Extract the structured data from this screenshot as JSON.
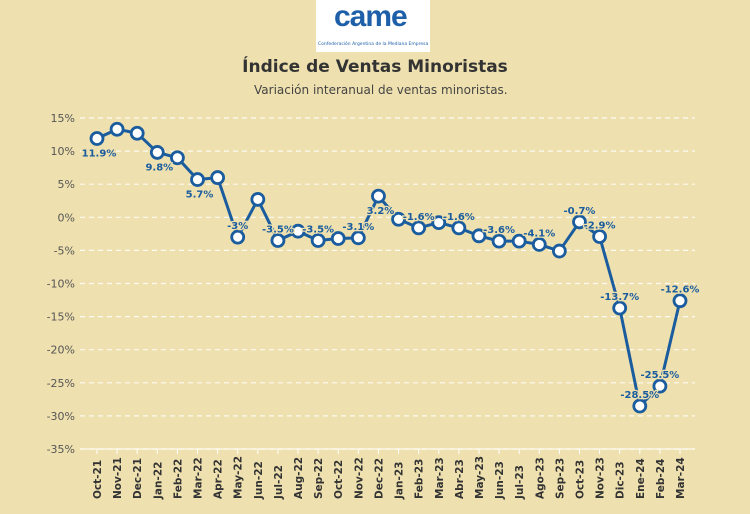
{
  "logo": {
    "mark": "came",
    "tagline": "Confederación Argentina de la Mediana Empresa"
  },
  "header": {
    "title": "Índice de Ventas Minoristas",
    "subtitle": "Variación interanual de ventas minoristas."
  },
  "chart_data": {
    "type": "line",
    "title": "Índice de Ventas Minoristas",
    "subtitle": "Variación interanual de ventas minoristas.",
    "xlabel": "",
    "ylabel": "",
    "ylim": [
      -35,
      15
    ],
    "yticks": [
      15,
      10,
      5,
      0,
      -5,
      -10,
      -15,
      -20,
      -25,
      -30,
      -35
    ],
    "ytick_labels": [
      "15%",
      "10%",
      "5%",
      "0%",
      "-5%",
      "-10%",
      "-15%",
      "-20%",
      "-25%",
      "-30%",
      "-35%"
    ],
    "grid": true,
    "color": "#1a5c9e",
    "categories": [
      "Oct-21",
      "Nov-21",
      "Dec-21",
      "Jan-22",
      "Feb-22",
      "Mar-22",
      "Apr-22",
      "May-22",
      "Jun-22",
      "Jul-22",
      "Aug-22",
      "Sep-22",
      "Oct-22",
      "Nov-22",
      "Dec-22",
      "Jan-23",
      "Feb-23",
      "Mar-23",
      "Abr-23",
      "May-23",
      "Jun-23",
      "Jul-23",
      "Ago-23",
      "Sep-23",
      "Oct-23",
      "Nov-23",
      "Dic-23",
      "Ene-24",
      "Feb-24",
      "Mar-24"
    ],
    "values": [
      11.9,
      13.3,
      12.7,
      9.8,
      9.0,
      5.7,
      6.0,
      -3.0,
      2.7,
      -3.5,
      -2.1,
      -3.5,
      -3.2,
      -3.1,
      3.2,
      -0.3,
      -1.6,
      -0.8,
      -1.6,
      -2.8,
      -3.6,
      -3.6,
      -4.1,
      -5.1,
      -0.7,
      -2.9,
      -13.7,
      -28.5,
      -25.5,
      -12.6
    ],
    "data_labels": [
      {
        "index": 0,
        "text": "11.9%",
        "side": "below"
      },
      {
        "index": 3,
        "text": "9.8%",
        "side": "below"
      },
      {
        "index": 5,
        "text": "5.7%",
        "side": "below"
      },
      {
        "index": 7,
        "text": "-3%",
        "side": "above"
      },
      {
        "index": 9,
        "text": "-3.5%",
        "side": "above"
      },
      {
        "index": 11,
        "text": "-3.5%",
        "side": "above"
      },
      {
        "index": 13,
        "text": "-3.1%",
        "side": "above"
      },
      {
        "index": 14,
        "text": "3.2%",
        "side": "below"
      },
      {
        "index": 16,
        "text": "-1.6%",
        "side": "above"
      },
      {
        "index": 18,
        "text": "-1.6%",
        "side": "above"
      },
      {
        "index": 20,
        "text": "-3.6%",
        "side": "above"
      },
      {
        "index": 22,
        "text": "-4.1%",
        "side": "above"
      },
      {
        "index": 24,
        "text": "-0.7%",
        "side": "above"
      },
      {
        "index": 25,
        "text": "-2.9%",
        "side": "above"
      },
      {
        "index": 26,
        "text": "-13.7%",
        "side": "above"
      },
      {
        "index": 27,
        "text": "-28.5%",
        "side": "above"
      },
      {
        "index": 28,
        "text": "-25.5%",
        "side": "above"
      },
      {
        "index": 29,
        "text": "-12.6%",
        "side": "above"
      }
    ]
  }
}
